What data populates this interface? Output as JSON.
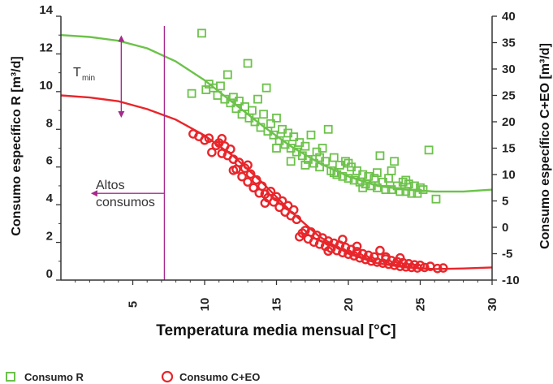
{
  "chart_data": {
    "type": "scatter",
    "xlabel": "Temperatura media mensual [°C]",
    "ylabel_left": "Consumo específico R [m³/d]",
    "ylabel_right": "Consumo específico C+EO [m³/d]",
    "xlim": [
      0,
      30
    ],
    "ylim_left": [
      0,
      14
    ],
    "ylim_right": [
      -10,
      40
    ],
    "x_ticks": [
      "5",
      "10",
      "15",
      "20",
      "25",
      "30"
    ],
    "y_ticks_left": [
      "0",
      "2",
      "4",
      "6",
      "8",
      "10",
      "12",
      "14"
    ],
    "y_ticks_right": [
      "-10",
      "-5",
      "0",
      "5",
      "10",
      "15",
      "20",
      "25",
      "30",
      "35",
      "40"
    ],
    "colors": {
      "R": "#6cc24a",
      "CEO": "#e8262b",
      "annotation": "#a52a8c",
      "axis": "#333333"
    },
    "legend_position": "bottom-left",
    "series": [
      {
        "name": "Consumo R",
        "axis": "left",
        "marker": "square",
        "color": "#6cc24a",
        "points": [
          [
            9.8,
            13.1
          ],
          [
            9.1,
            9.9
          ],
          [
            10.1,
            10.1
          ],
          [
            10.3,
            10.4
          ],
          [
            10.6,
            10.2
          ],
          [
            10.9,
            9.8
          ],
          [
            11.1,
            10.3
          ],
          [
            11.4,
            9.6
          ],
          [
            11.6,
            10.9
          ],
          [
            11.8,
            9.4
          ],
          [
            12.0,
            9.7
          ],
          [
            12.2,
            9.1
          ],
          [
            12.4,
            9.5
          ],
          [
            12.6,
            8.8
          ],
          [
            12.8,
            9.2
          ],
          [
            13.0,
            11.5
          ],
          [
            13.1,
            8.6
          ],
          [
            13.3,
            9.0
          ],
          [
            13.5,
            8.4
          ],
          [
            13.7,
            9.6
          ],
          [
            13.9,
            8.1
          ],
          [
            14.1,
            8.8
          ],
          [
            14.3,
            10.2
          ],
          [
            14.4,
            7.9
          ],
          [
            14.6,
            8.3
          ],
          [
            14.8,
            7.7
          ],
          [
            15.0,
            8.6
          ],
          [
            15.2,
            7.4
          ],
          [
            15.4,
            8.0
          ],
          [
            15.6,
            7.2
          ],
          [
            15.8,
            7.8
          ],
          [
            16.0,
            7.0
          ],
          [
            16.2,
            7.6
          ],
          [
            16.4,
            6.8
          ],
          [
            16.6,
            7.3
          ],
          [
            16.8,
            6.6
          ],
          [
            17.0,
            7.1
          ],
          [
            17.2,
            6.4
          ],
          [
            17.4,
            7.7
          ],
          [
            17.6,
            6.2
          ],
          [
            17.8,
            6.8
          ],
          [
            18.0,
            6.0
          ],
          [
            18.2,
            7.0
          ],
          [
            18.4,
            6.3
          ],
          [
            18.6,
            8.0
          ],
          [
            18.8,
            5.8
          ],
          [
            19.0,
            6.5
          ],
          [
            19.2,
            5.6
          ],
          [
            19.4,
            6.1
          ],
          [
            19.6,
            5.5
          ],
          [
            19.8,
            6.3
          ],
          [
            20.0,
            5.4
          ],
          [
            20.2,
            6.0
          ],
          [
            20.4,
            5.3
          ],
          [
            20.6,
            5.8
          ],
          [
            20.8,
            5.2
          ],
          [
            21.0,
            5.6
          ],
          [
            21.2,
            5.1
          ],
          [
            21.4,
            5.5
          ],
          [
            21.6,
            5.0
          ],
          [
            21.8,
            5.4
          ],
          [
            22.0,
            4.9
          ],
          [
            22.2,
            6.6
          ],
          [
            22.4,
            5.2
          ],
          [
            22.6,
            4.8
          ],
          [
            22.8,
            5.4
          ],
          [
            23.0,
            4.8
          ],
          [
            23.2,
            6.3
          ],
          [
            23.4,
            5.0
          ],
          [
            23.6,
            4.7
          ],
          [
            23.8,
            5.2
          ],
          [
            24.0,
            4.7
          ],
          [
            24.2,
            5.1
          ],
          [
            24.4,
            4.6
          ],
          [
            24.6,
            5.0
          ],
          [
            24.8,
            4.6
          ],
          [
            25.0,
            4.9
          ],
          [
            25.2,
            4.8
          ],
          [
            25.6,
            6.9
          ],
          [
            26.1,
            4.3
          ],
          [
            23.0,
            5.8
          ],
          [
            21.0,
            4.9
          ],
          [
            19.0,
            5.7
          ],
          [
            17.0,
            6.1
          ],
          [
            15.0,
            7.0
          ],
          [
            24.0,
            5.3
          ],
          [
            22.0,
            5.7
          ],
          [
            20.0,
            6.2
          ],
          [
            18.0,
            6.5
          ],
          [
            16.0,
            6.3
          ]
        ]
      },
      {
        "name": "Consumo C+EO",
        "axis": "right",
        "marker": "circle",
        "color": "#e8262b",
        "points": [
          [
            9.2,
            17.7
          ],
          [
            9.6,
            17.2
          ],
          [
            10.0,
            16.5
          ],
          [
            10.3,
            16.9
          ],
          [
            10.5,
            14.2
          ],
          [
            10.8,
            15.5
          ],
          [
            11.0,
            16.0
          ],
          [
            11.2,
            14.0
          ],
          [
            11.4,
            15.4
          ],
          [
            11.6,
            13.6
          ],
          [
            11.8,
            14.8
          ],
          [
            12.0,
            12.9
          ],
          [
            12.2,
            11.0
          ],
          [
            12.4,
            12.3
          ],
          [
            12.6,
            9.6
          ],
          [
            12.8,
            11.2
          ],
          [
            13.0,
            8.6
          ],
          [
            13.2,
            10.1
          ],
          [
            13.4,
            7.5
          ],
          [
            13.6,
            9.0
          ],
          [
            13.8,
            6.5
          ],
          [
            14.0,
            7.8
          ],
          [
            14.2,
            6.3
          ],
          [
            14.4,
            5.6
          ],
          [
            14.6,
            6.8
          ],
          [
            14.8,
            4.8
          ],
          [
            15.0,
            5.8
          ],
          [
            15.2,
            3.8
          ],
          [
            15.4,
            5.0
          ],
          [
            15.6,
            2.9
          ],
          [
            15.8,
            4.1
          ],
          [
            16.0,
            2.2
          ],
          [
            16.2,
            3.3
          ],
          [
            16.4,
            1.5
          ],
          [
            16.6,
            -1.8
          ],
          [
            16.8,
            -1.1
          ],
          [
            17.0,
            -0.6
          ],
          [
            17.2,
            -2.2
          ],
          [
            17.4,
            -0.9
          ],
          [
            17.6,
            -2.8
          ],
          [
            17.8,
            -1.5
          ],
          [
            18.0,
            -3.2
          ],
          [
            18.2,
            -2.0
          ],
          [
            18.4,
            -3.6
          ],
          [
            18.6,
            -2.6
          ],
          [
            18.8,
            -4.0
          ],
          [
            19.0,
            -3.0
          ],
          [
            19.2,
            -4.4
          ],
          [
            19.4,
            -3.4
          ],
          [
            19.6,
            -4.8
          ],
          [
            19.8,
            -3.8
          ],
          [
            20.0,
            -5.1
          ],
          [
            20.2,
            -4.2
          ],
          [
            20.4,
            -5.4
          ],
          [
            20.6,
            -4.6
          ],
          [
            20.8,
            -5.8
          ],
          [
            21.0,
            -5.0
          ],
          [
            21.2,
            -6.1
          ],
          [
            21.4,
            -5.3
          ],
          [
            21.6,
            -6.4
          ],
          [
            21.8,
            -5.6
          ],
          [
            22.0,
            -6.6
          ],
          [
            22.2,
            -4.4
          ],
          [
            22.4,
            -6.8
          ],
          [
            22.6,
            -6.0
          ],
          [
            22.8,
            -7.0
          ],
          [
            23.0,
            -6.3
          ],
          [
            23.2,
            -7.2
          ],
          [
            23.4,
            -6.5
          ],
          [
            23.6,
            -7.4
          ],
          [
            23.8,
            -6.7
          ],
          [
            24.0,
            -7.5
          ],
          [
            24.2,
            -6.9
          ],
          [
            24.4,
            -7.6
          ],
          [
            24.6,
            -7.1
          ],
          [
            24.8,
            -7.7
          ],
          [
            25.0,
            -7.2
          ],
          [
            25.3,
            -7.6
          ],
          [
            25.7,
            -7.4
          ],
          [
            26.2,
            -7.8
          ],
          [
            26.6,
            -7.7
          ],
          [
            22.6,
            -5.6
          ],
          [
            20.6,
            -3.6
          ],
          [
            18.6,
            -4.5
          ],
          [
            14.2,
            4.6
          ],
          [
            13.0,
            11.8
          ],
          [
            12.0,
            10.8
          ],
          [
            11.2,
            16.8
          ],
          [
            19.6,
            -2.3
          ],
          [
            23.6,
            -5.8
          ]
        ]
      }
    ],
    "trend_curves": [
      {
        "series": "Consumo R",
        "axis": "left",
        "color": "#6cc24a",
        "points": [
          [
            0,
            13.0
          ],
          [
            2,
            12.9
          ],
          [
            4,
            12.7
          ],
          [
            6,
            12.3
          ],
          [
            8,
            11.6
          ],
          [
            10,
            10.6
          ],
          [
            12,
            9.4
          ],
          [
            14,
            8.2
          ],
          [
            16,
            7.1
          ],
          [
            18,
            6.2
          ],
          [
            20,
            5.5
          ],
          [
            22,
            5.0
          ],
          [
            24,
            4.8
          ],
          [
            26,
            4.7
          ],
          [
            28,
            4.7
          ],
          [
            30,
            4.8
          ]
        ]
      },
      {
        "series": "Consumo C+EO",
        "axis": "right",
        "color": "#e8262b",
        "points": [
          [
            0,
            25.0
          ],
          [
            2,
            24.6
          ],
          [
            4,
            23.9
          ],
          [
            6,
            22.4
          ],
          [
            8,
            20.4
          ],
          [
            10,
            17.4
          ],
          [
            12,
            13.5
          ],
          [
            14,
            8.5
          ],
          [
            16,
            3.0
          ],
          [
            18,
            -1.8
          ],
          [
            20,
            -5.0
          ],
          [
            22,
            -6.8
          ],
          [
            24,
            -7.6
          ],
          [
            26,
            -7.9
          ],
          [
            28,
            -7.8
          ],
          [
            30,
            -7.6
          ]
        ]
      }
    ],
    "annotations": {
      "t_min_main": "T",
      "t_min_sub": "min",
      "altos_line1": "Altos",
      "altos_line2": "consumos",
      "vertical_line_x": 7.2,
      "double_arrow_x": 4.2,
      "double_arrow_y": [
        12.9,
        8.7
      ],
      "left_arrow_y": 4.6,
      "left_arrow_x": [
        7.2,
        2.2
      ]
    },
    "legend": [
      {
        "label": "Consumo R",
        "marker": "square",
        "color": "#6cc24a"
      },
      {
        "label": "Consumo C+EO",
        "marker": "circle",
        "color": "#e8262b"
      }
    ]
  }
}
